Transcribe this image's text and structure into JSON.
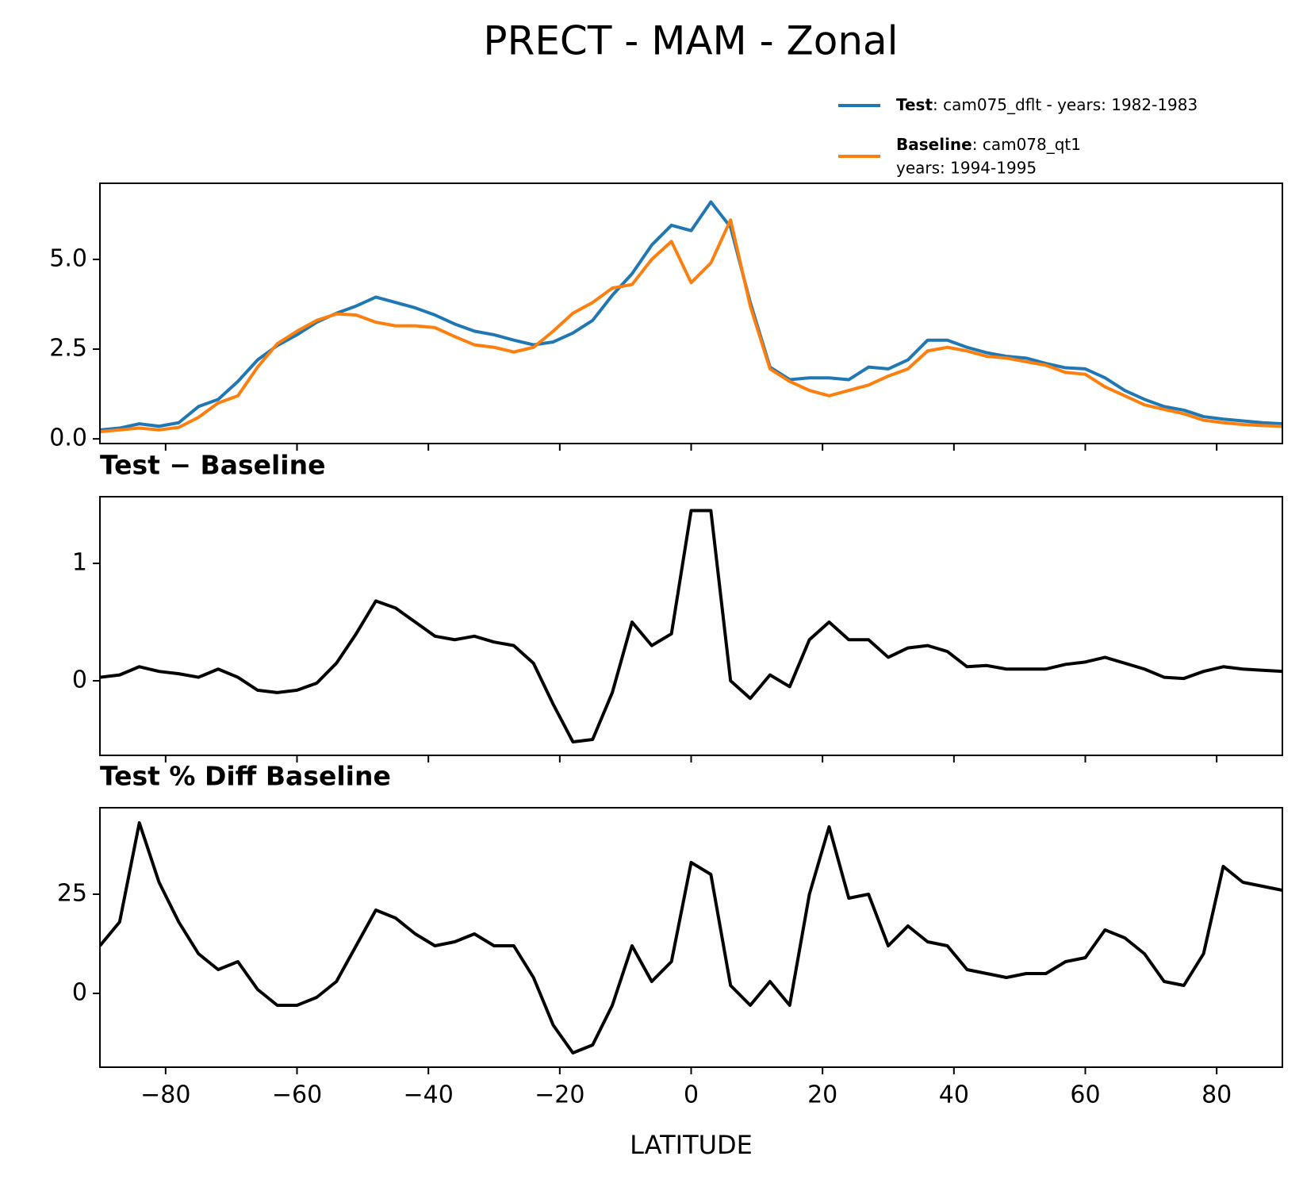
{
  "title": "PRECT - MAM - Zonal",
  "chart_data": [
    {
      "type": "line",
      "legend": "upper right",
      "x": [
        -90,
        -87,
        -84,
        -81,
        -78,
        -75,
        -72,
        -69,
        -66,
        -63,
        -60,
        -57,
        -54,
        -51,
        -48,
        -45,
        -42,
        -39,
        -36,
        -33,
        -30,
        -27,
        -24,
        -21,
        -18,
        -15,
        -12,
        -9,
        -6,
        -3,
        0,
        3,
        6,
        9,
        12,
        15,
        18,
        21,
        24,
        27,
        30,
        33,
        36,
        39,
        42,
        45,
        48,
        51,
        54,
        57,
        60,
        63,
        66,
        69,
        72,
        75,
        78,
        81,
        84,
        87,
        90
      ],
      "series": [
        {
          "name": "Test",
          "detail": [
            ": cam075_dflt - years: 1982-1983"
          ],
          "color": "#1f77b4",
          "values": [
            0.25,
            0.3,
            0.42,
            0.35,
            0.45,
            0.9,
            1.1,
            1.6,
            2.2,
            2.6,
            2.9,
            3.25,
            3.5,
            3.7,
            3.95,
            3.8,
            3.65,
            3.45,
            3.2,
            3.0,
            2.9,
            2.75,
            2.62,
            2.7,
            2.95,
            3.3,
            4.0,
            4.6,
            5.4,
            5.95,
            5.8,
            6.6,
            5.9,
            3.8,
            2.0,
            1.65,
            1.7,
            1.7,
            1.65,
            2.0,
            1.95,
            2.2,
            2.75,
            2.75,
            2.55,
            2.4,
            2.3,
            2.25,
            2.1,
            1.98,
            1.95,
            1.7,
            1.35,
            1.1,
            0.9,
            0.8,
            0.62,
            0.55,
            0.5,
            0.45,
            0.42
          ]
        },
        {
          "name": "Baseline",
          "detail": [
            ": cam078_qt1",
            "years: 1994-1995"
          ],
          "color": "#ff7f0e",
          "values": [
            0.2,
            0.25,
            0.3,
            0.25,
            0.32,
            0.6,
            1.0,
            1.2,
            2.0,
            2.65,
            3.0,
            3.3,
            3.48,
            3.45,
            3.25,
            3.15,
            3.15,
            3.1,
            2.85,
            2.62,
            2.55,
            2.42,
            2.55,
            3.0,
            3.5,
            3.8,
            4.2,
            4.3,
            5.0,
            5.5,
            4.35,
            4.9,
            6.1,
            3.7,
            1.95,
            1.6,
            1.35,
            1.2,
            1.35,
            1.5,
            1.75,
            1.95,
            2.45,
            2.55,
            2.45,
            2.3,
            2.25,
            2.15,
            2.05,
            1.85,
            1.8,
            1.45,
            1.2,
            0.95,
            0.82,
            0.7,
            0.52,
            0.45,
            0.4,
            0.37,
            0.35
          ]
        }
      ],
      "xlim": [
        -90,
        90
      ],
      "xticks": [
        -80,
        -60,
        -40,
        -20,
        0,
        20,
        40,
        60,
        80
      ],
      "ylim": [
        -0.13,
        7.12
      ],
      "yticks": [
        {
          "value": 0,
          "label": "0.0"
        },
        2.5,
        {
          "value": 5,
          "label": "5.0"
        }
      ]
    },
    {
      "type": "line",
      "title": "Test − Baseline",
      "x": [
        -90,
        -87,
        -84,
        -81,
        -78,
        -75,
        -72,
        -69,
        -66,
        -63,
        -60,
        -57,
        -54,
        -51,
        -48,
        -45,
        -42,
        -39,
        -36,
        -33,
        -30,
        -27,
        -24,
        -21,
        -18,
        -15,
        -12,
        -9,
        -6,
        -3,
        0,
        3,
        6,
        9,
        12,
        15,
        18,
        21,
        24,
        27,
        30,
        33,
        36,
        39,
        42,
        45,
        48,
        51,
        54,
        57,
        60,
        63,
        66,
        69,
        72,
        75,
        78,
        81,
        84,
        87,
        90
      ],
      "series": [
        {
          "color": "#000000",
          "values": [
            0.03,
            0.05,
            0.12,
            0.08,
            0.06,
            0.03,
            0.1,
            0.03,
            -0.08,
            -0.1,
            -0.08,
            -0.02,
            0.15,
            0.4,
            0.68,
            0.62,
            0.5,
            0.38,
            0.35,
            0.38,
            0.33,
            0.3,
            0.15,
            -0.2,
            -0.52,
            -0.5,
            -0.1,
            0.5,
            0.3,
            0.4,
            1.45,
            1.45,
            0.0,
            -0.15,
            0.05,
            -0.05,
            0.35,
            0.5,
            0.35,
            0.35,
            0.2,
            0.28,
            0.3,
            0.25,
            0.12,
            0.13,
            0.1,
            0.1,
            0.1,
            0.14,
            0.16,
            0.2,
            0.15,
            0.1,
            0.03,
            0.02,
            0.08,
            0.12,
            0.1,
            0.09,
            0.08
          ]
        }
      ],
      "xlim": [
        -90,
        90
      ],
      "xticks": [
        -80,
        -60,
        -40,
        -20,
        0,
        20,
        40,
        60,
        80
      ],
      "ylim": [
        -0.635,
        1.568
      ],
      "yticks": [
        0,
        1
      ]
    },
    {
      "type": "line",
      "title": "Test % Diff Baseline",
      "xlabel": "LATITUDE",
      "x": [
        -90,
        -87,
        -84,
        -81,
        -78,
        -75,
        -72,
        -69,
        -66,
        -63,
        -60,
        -57,
        -54,
        -51,
        -48,
        -45,
        -42,
        -39,
        -36,
        -33,
        -30,
        -27,
        -24,
        -21,
        -18,
        -15,
        -12,
        -9,
        -6,
        -3,
        0,
        3,
        6,
        9,
        12,
        15,
        18,
        21,
        24,
        27,
        30,
        33,
        36,
        39,
        42,
        45,
        48,
        51,
        54,
        57,
        60,
        63,
        66,
        69,
        72,
        75,
        78,
        81,
        84,
        87,
        90
      ],
      "series": [
        {
          "color": "#000000",
          "values": [
            12,
            18,
            43,
            28,
            18,
            10,
            6,
            8,
            1,
            -3,
            -3,
            -1,
            3,
            12,
            21,
            19,
            15,
            12,
            13,
            15,
            12,
            12,
            4,
            -8,
            -15,
            -13,
            -3,
            12,
            3,
            8,
            33,
            30,
            2,
            -3,
            3,
            -3,
            25,
            42,
            24,
            25,
            12,
            17,
            13,
            12,
            6,
            5,
            4,
            5,
            5,
            8,
            9,
            16,
            14,
            10,
            3,
            2,
            10,
            32,
            28,
            27,
            26
          ]
        }
      ],
      "xlim": [
        -90,
        90
      ],
      "xticks": [
        {
          "value": -80,
          "label": "−80"
        },
        {
          "value": -60,
          "label": "−60"
        },
        {
          "value": -40,
          "label": "−40"
        },
        {
          "value": -20,
          "label": "−20"
        },
        0,
        20,
        40,
        60,
        80
      ],
      "ylim": [
        -18.6,
        46.8
      ],
      "yticks": [
        0,
        25
      ]
    }
  ]
}
